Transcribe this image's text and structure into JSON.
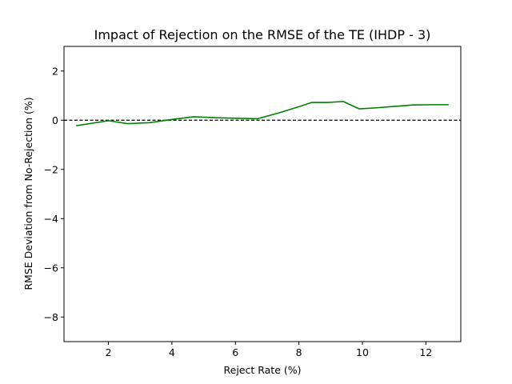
{
  "chart_data": {
    "type": "line",
    "title": "Impact of Rejection on the RMSE of the TE (IHDP - 3)",
    "xlabel": "Reject Rate (%)",
    "ylabel": "RMSE Deviation from No-Rejection (%)",
    "xlim": [
      0.6,
      13.1
    ],
    "ylim": [
      -9,
      3
    ],
    "x_ticks": [
      2,
      4,
      6,
      8,
      10,
      12
    ],
    "y_ticks": [
      2,
      0,
      -2,
      -4,
      -6,
      -8
    ],
    "x_tick_labels": [
      "2",
      "4",
      "6",
      "8",
      "10",
      "12"
    ],
    "y_tick_labels": [
      "2",
      "0",
      "−2",
      "−4",
      "−6",
      "−8"
    ],
    "grid": false,
    "reference_line": {
      "y": 0,
      "style": "dashed",
      "color": "#000000"
    },
    "series": [
      {
        "name": "RMSE deviation",
        "color": "#008000",
        "x": [
          1.0,
          2.0,
          2.6,
          3.3,
          4.0,
          4.7,
          5.4,
          6.0,
          6.7,
          7.4,
          8.0,
          8.4,
          8.9,
          9.4,
          9.9,
          10.4,
          10.9,
          11.6,
          12.2,
          12.7
        ],
        "y": [
          -0.22,
          -0.02,
          -0.14,
          -0.1,
          0.03,
          0.14,
          0.1,
          0.08,
          0.06,
          0.31,
          0.55,
          0.72,
          0.72,
          0.76,
          0.46,
          0.5,
          0.55,
          0.62,
          0.63,
          0.63
        ]
      }
    ]
  }
}
